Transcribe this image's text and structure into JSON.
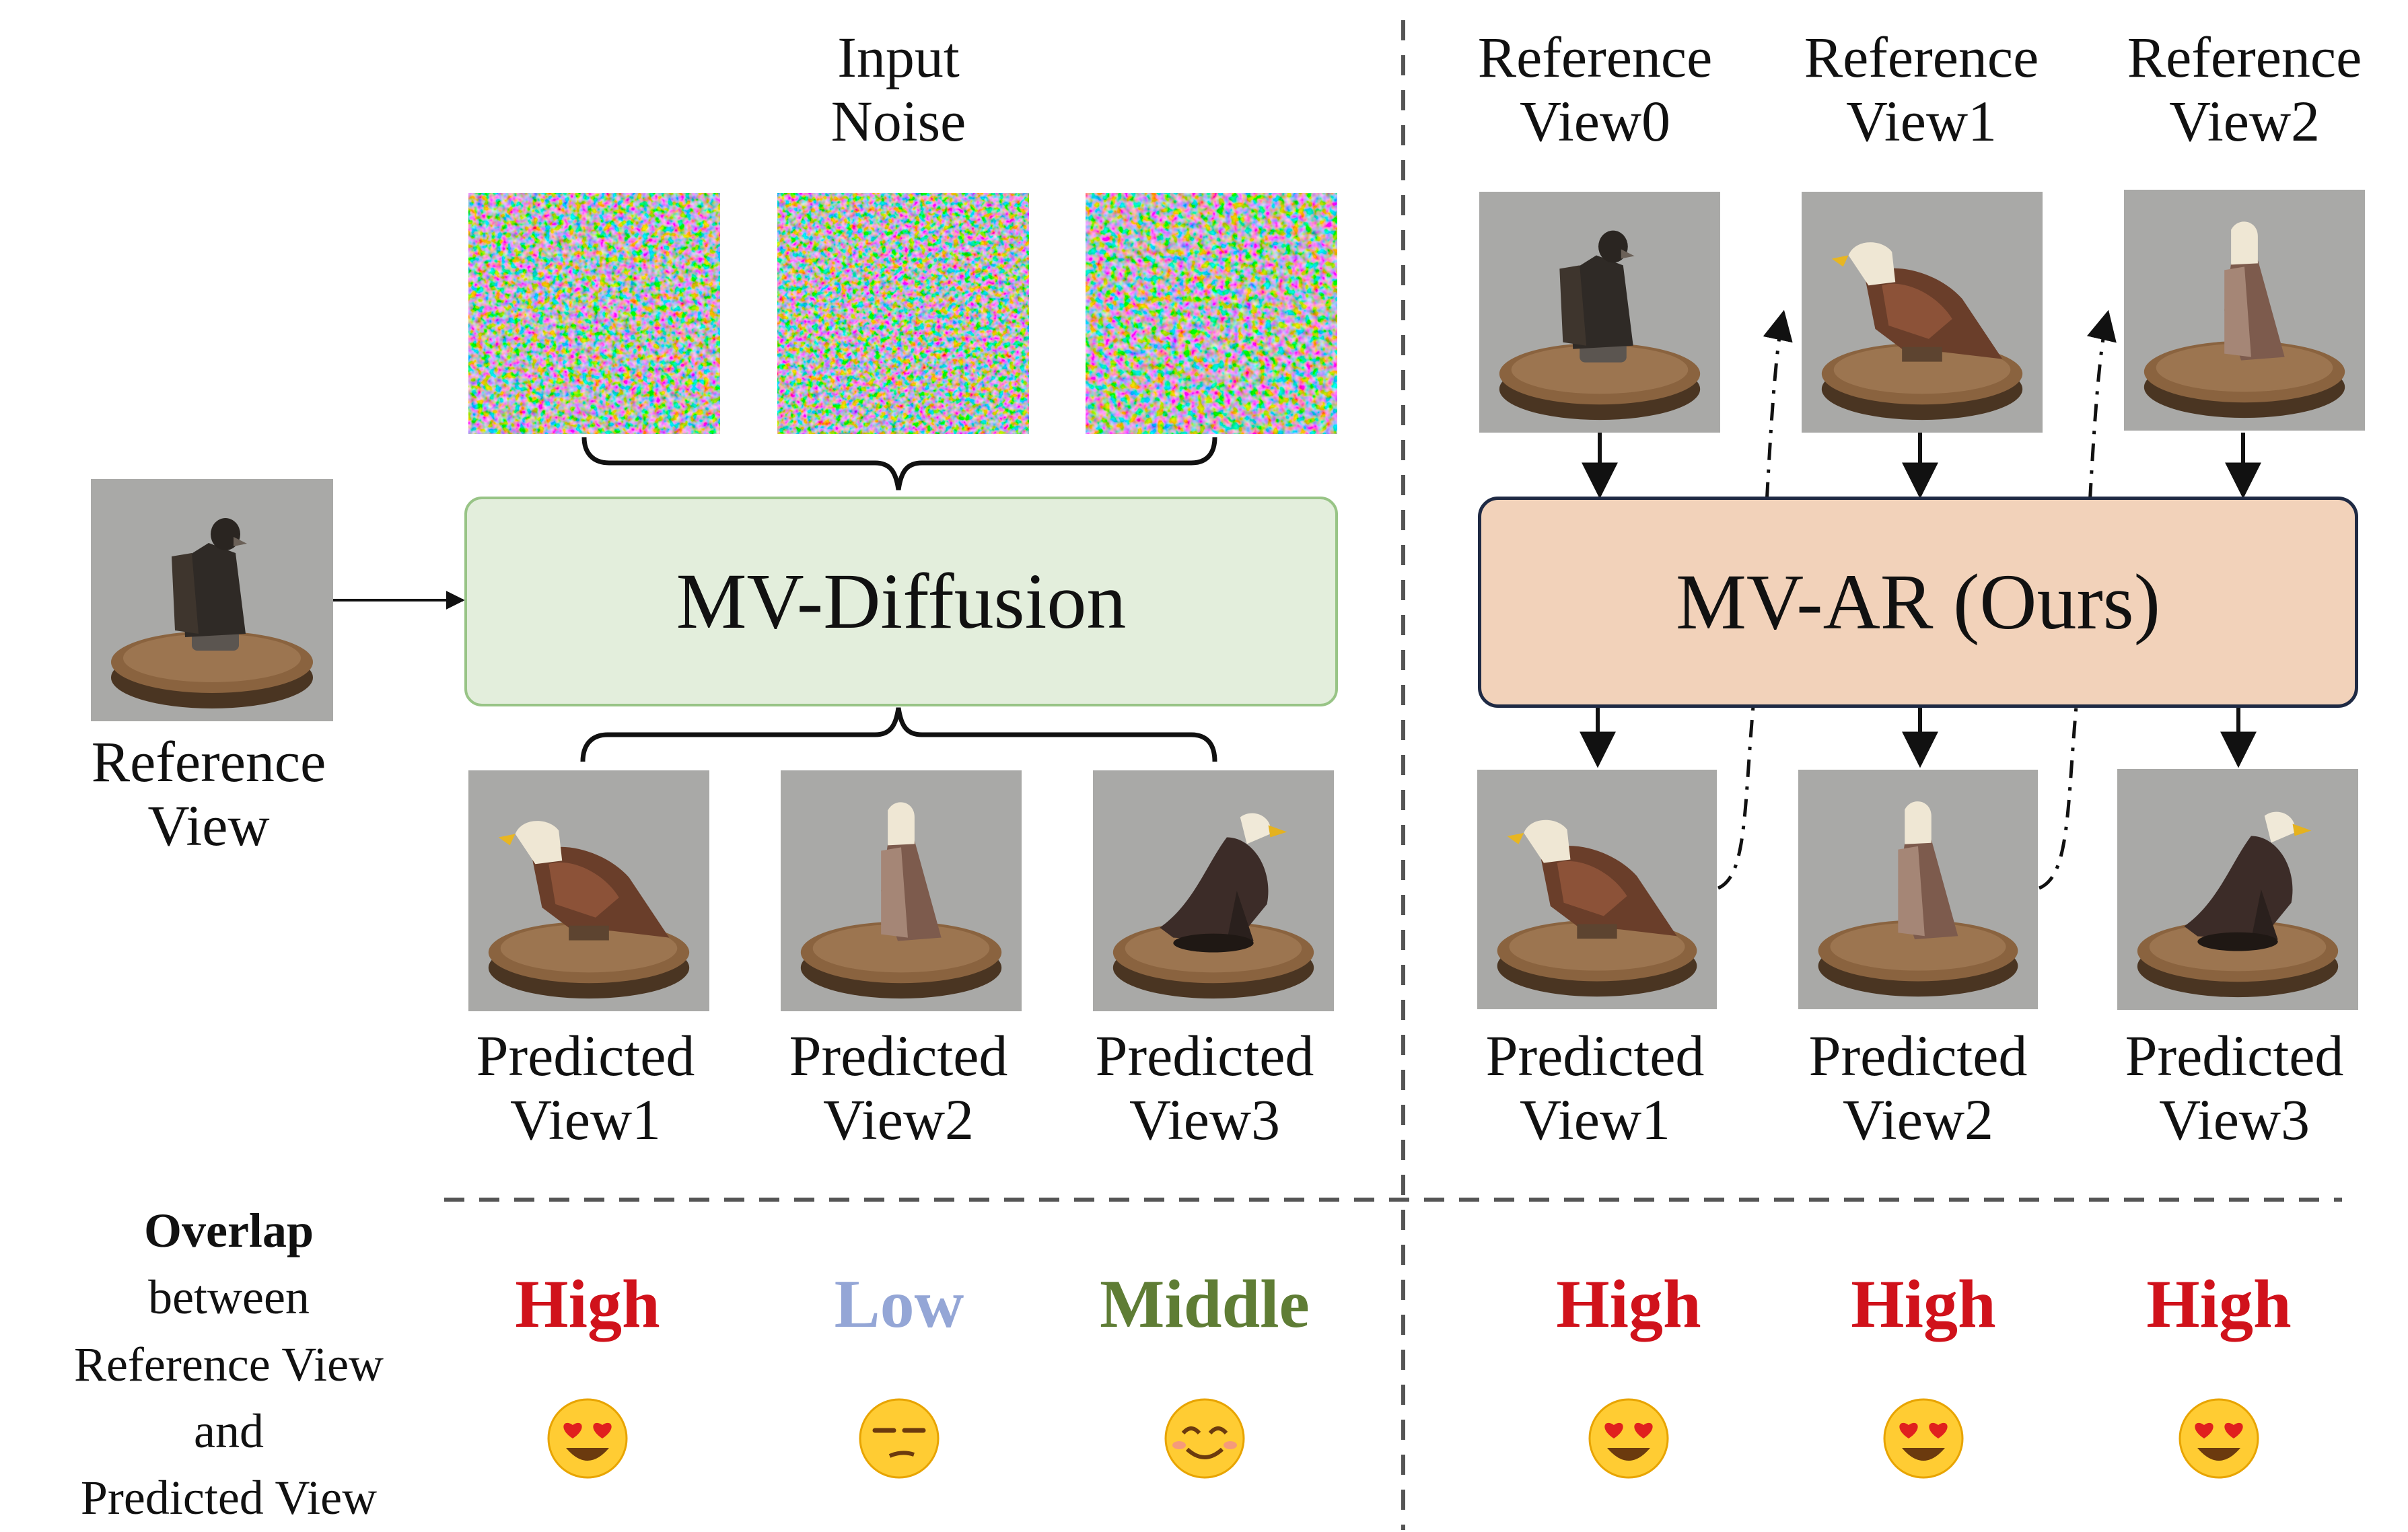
{
  "input_noise": {
    "line1": "Input",
    "line2": "Noise"
  },
  "reference_view": {
    "line1": "Reference",
    "line2": "View"
  },
  "mv_diffusion": "MV-Diffusion",
  "mv_ar": "MV-AR (Ours)",
  "ar_refs": [
    {
      "line1": "Reference",
      "line2": "View0"
    },
    {
      "line1": "Reference",
      "line2": "View1"
    },
    {
      "line1": "Reference",
      "line2": "View2"
    }
  ],
  "diff_preds": [
    {
      "line1": "Predicted",
      "line2": "View1"
    },
    {
      "line1": "Predicted",
      "line2": "View2"
    },
    {
      "line1": "Predicted",
      "line2": "View3"
    }
  ],
  "ar_preds": [
    {
      "line1": "Predicted",
      "line2": "View1"
    },
    {
      "line1": "Predicted",
      "line2": "View2"
    },
    {
      "line1": "Predicted",
      "line2": "View3"
    }
  ],
  "overlap": {
    "title": "Overlap",
    "line2": "between",
    "line3": "Reference View",
    "line4": "and",
    "line5": "Predicted View"
  },
  "ratings": {
    "diffusion": [
      {
        "label": "High",
        "color": "#d0121b",
        "emoji": "heart-eyes-face-icon"
      },
      {
        "label": "Low",
        "color": "#94a6d6",
        "emoji": "unamused-face-icon"
      },
      {
        "label": "Middle",
        "color": "#5f7d35",
        "emoji": "smiling-face-icon"
      }
    ],
    "ar": [
      {
        "label": "High",
        "color": "#d0121b",
        "emoji": "heart-eyes-face-icon"
      },
      {
        "label": "High",
        "color": "#d0121b",
        "emoji": "heart-eyes-face-icon"
      },
      {
        "label": "High",
        "color": "#d0121b",
        "emoji": "heart-eyes-face-icon"
      }
    ]
  }
}
